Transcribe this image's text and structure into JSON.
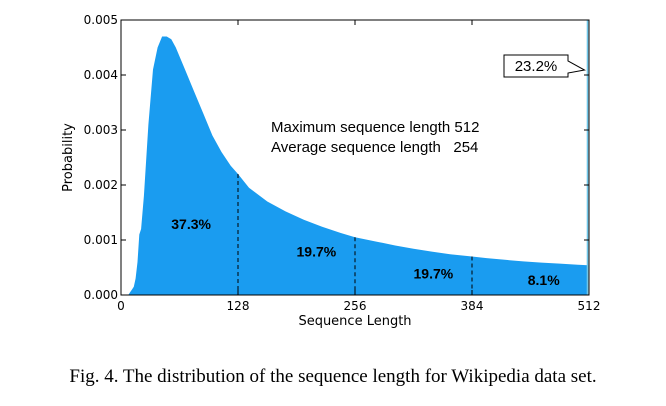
{
  "caption": "Fig. 4.  The distribution of the sequence length for Wikipedia data set.",
  "chart_data": {
    "type": "area",
    "xlabel": "Sequence Length",
    "ylabel": "Probability",
    "xlim": [
      0,
      512
    ],
    "ylim": [
      0,
      0.005
    ],
    "x_ticks": [
      0,
      128,
      256,
      384,
      512
    ],
    "y_ticks": [
      0.0,
      0.001,
      0.002,
      0.003,
      0.004,
      0.005
    ],
    "y_tick_labels": [
      "0.000",
      "0.001",
      "0.002",
      "0.003",
      "0.004",
      "0.005"
    ],
    "fill_color": "#1a9cf0",
    "line_color": "#6ec6e8",
    "x": [
      0,
      8,
      10,
      12,
      14,
      16,
      18,
      20,
      22,
      25,
      30,
      35,
      40,
      45,
      50,
      55,
      60,
      65,
      70,
      80,
      90,
      100,
      110,
      120,
      128,
      140,
      160,
      180,
      200,
      220,
      240,
      256,
      280,
      300,
      320,
      340,
      360,
      384,
      400,
      420,
      440,
      460,
      480,
      500,
      511
    ],
    "y": [
      0,
      0,
      5e-05,
      0.0001,
      0.00015,
      0.0003,
      0.0006,
      0.0011,
      0.0012,
      0.0018,
      0.0031,
      0.0041,
      0.0045,
      0.0047,
      0.0047,
      0.00465,
      0.0045,
      0.0043,
      0.0041,
      0.0037,
      0.0033,
      0.0029,
      0.0026,
      0.00235,
      0.0022,
      0.00195,
      0.0017,
      0.00152,
      0.00137,
      0.00124,
      0.00113,
      0.00105,
      0.00097,
      0.0009,
      0.00084,
      0.00079,
      0.00074,
      0.0007,
      0.00067,
      0.00064,
      0.00061,
      0.00059,
      0.00057,
      0.00055,
      0.00054
    ],
    "final_spike": {
      "x": 512,
      "label": "23.2%"
    },
    "dividers": [
      128,
      256,
      384
    ],
    "segments": [
      {
        "label": "37.3%",
        "x": 55,
        "y": 0.0012
      },
      {
        "label": "19.7%",
        "x": 192,
        "y": 0.0007
      },
      {
        "label": "19.7%",
        "x": 320,
        "y": 0.0003
      },
      {
        "label": "8.1%",
        "x": 445,
        "y": 0.00018
      }
    ],
    "annotations": [
      "Maximum sequence length 512",
      "Average sequence length   254"
    ]
  }
}
